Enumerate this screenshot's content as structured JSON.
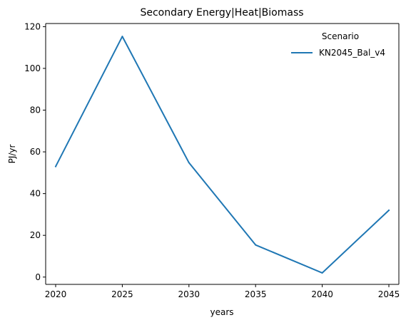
{
  "chart_data": {
    "type": "line",
    "title": "Secondary Energy|Heat|Biomass",
    "xlabel": "years",
    "ylabel": "PJ/yr",
    "x": [
      2020,
      2025,
      2030,
      2035,
      2040,
      2045
    ],
    "xticks": [
      "2020",
      "2025",
      "2030",
      "2035",
      "2040",
      "2045"
    ],
    "yticks": [
      "0",
      "20",
      "40",
      "60",
      "80",
      "100",
      "120"
    ],
    "xlim": [
      2019.25,
      2045.75
    ],
    "ylim": [
      -3.5,
      121.5
    ],
    "grid": false,
    "legend": {
      "title": "Scenario",
      "placement": "top-right"
    },
    "series": [
      {
        "name": "KN2045_Bal_v4",
        "color": "#1f77b4",
        "values": [
          53.0,
          115.3,
          54.8,
          15.4,
          2.0,
          32.0
        ]
      }
    ]
  }
}
